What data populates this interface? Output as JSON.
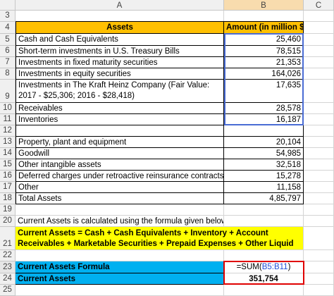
{
  "column_headers": [
    "A",
    "B",
    "C"
  ],
  "rows": [
    {
      "row": "3"
    },
    {
      "row": "4",
      "a": "Assets",
      "b": "Amount (in million $)"
    },
    {
      "row": "5",
      "a": "Cash and Cash Equivalents",
      "b": "25,460"
    },
    {
      "row": "6",
      "a": "Short-term investments in U.S. Treasury Bills",
      "b": "78,515"
    },
    {
      "row": "7",
      "a": "Investments in fixed maturity securities",
      "b": "21,353"
    },
    {
      "row": "8",
      "a": "Investments in equity securities",
      "b": "164,026"
    },
    {
      "row": "9",
      "a": "Investments in The Kraft Heinz Company (Fair Value: 2017 - $25,306; 2016 - $28,418)",
      "b": "17,635"
    },
    {
      "row": "10",
      "a": "Receivables",
      "b": "28,578"
    },
    {
      "row": "11",
      "a": "Inventories",
      "b": "16,187"
    },
    {
      "row": "12"
    },
    {
      "row": "13",
      "a": "Property, plant and equipment",
      "b": "20,104"
    },
    {
      "row": "14",
      "a": "Goodwill",
      "b": "54,985"
    },
    {
      "row": "15",
      "a": "Other intangible assets",
      "b": "32,518"
    },
    {
      "row": "16",
      "a": "Deferred charges under retroactive reinsurance contracts",
      "b": "15,278"
    },
    {
      "row": "17",
      "a": "Other",
      "b": "11,158"
    },
    {
      "row": "18",
      "a": "Total Assets",
      "b": "4,85,797"
    },
    {
      "row": "19"
    },
    {
      "row": "20",
      "a": "Current Assets is calculated using the formula given below"
    },
    {
      "row": "21",
      "a": "Current Assets = Cash + Cash Equivalents + Inventory + Account Receivables + Marketable Securities + Prepaid Expenses + Other Liquid Assets"
    },
    {
      "row": "22"
    },
    {
      "row": "23",
      "a": "Current Assets Formula",
      "b": [
        "=SUM(",
        "B5:B11",
        ")"
      ]
    },
    {
      "row": "24",
      "a": "Current Assets",
      "b": "351,754"
    },
    {
      "row": "25"
    }
  ]
}
